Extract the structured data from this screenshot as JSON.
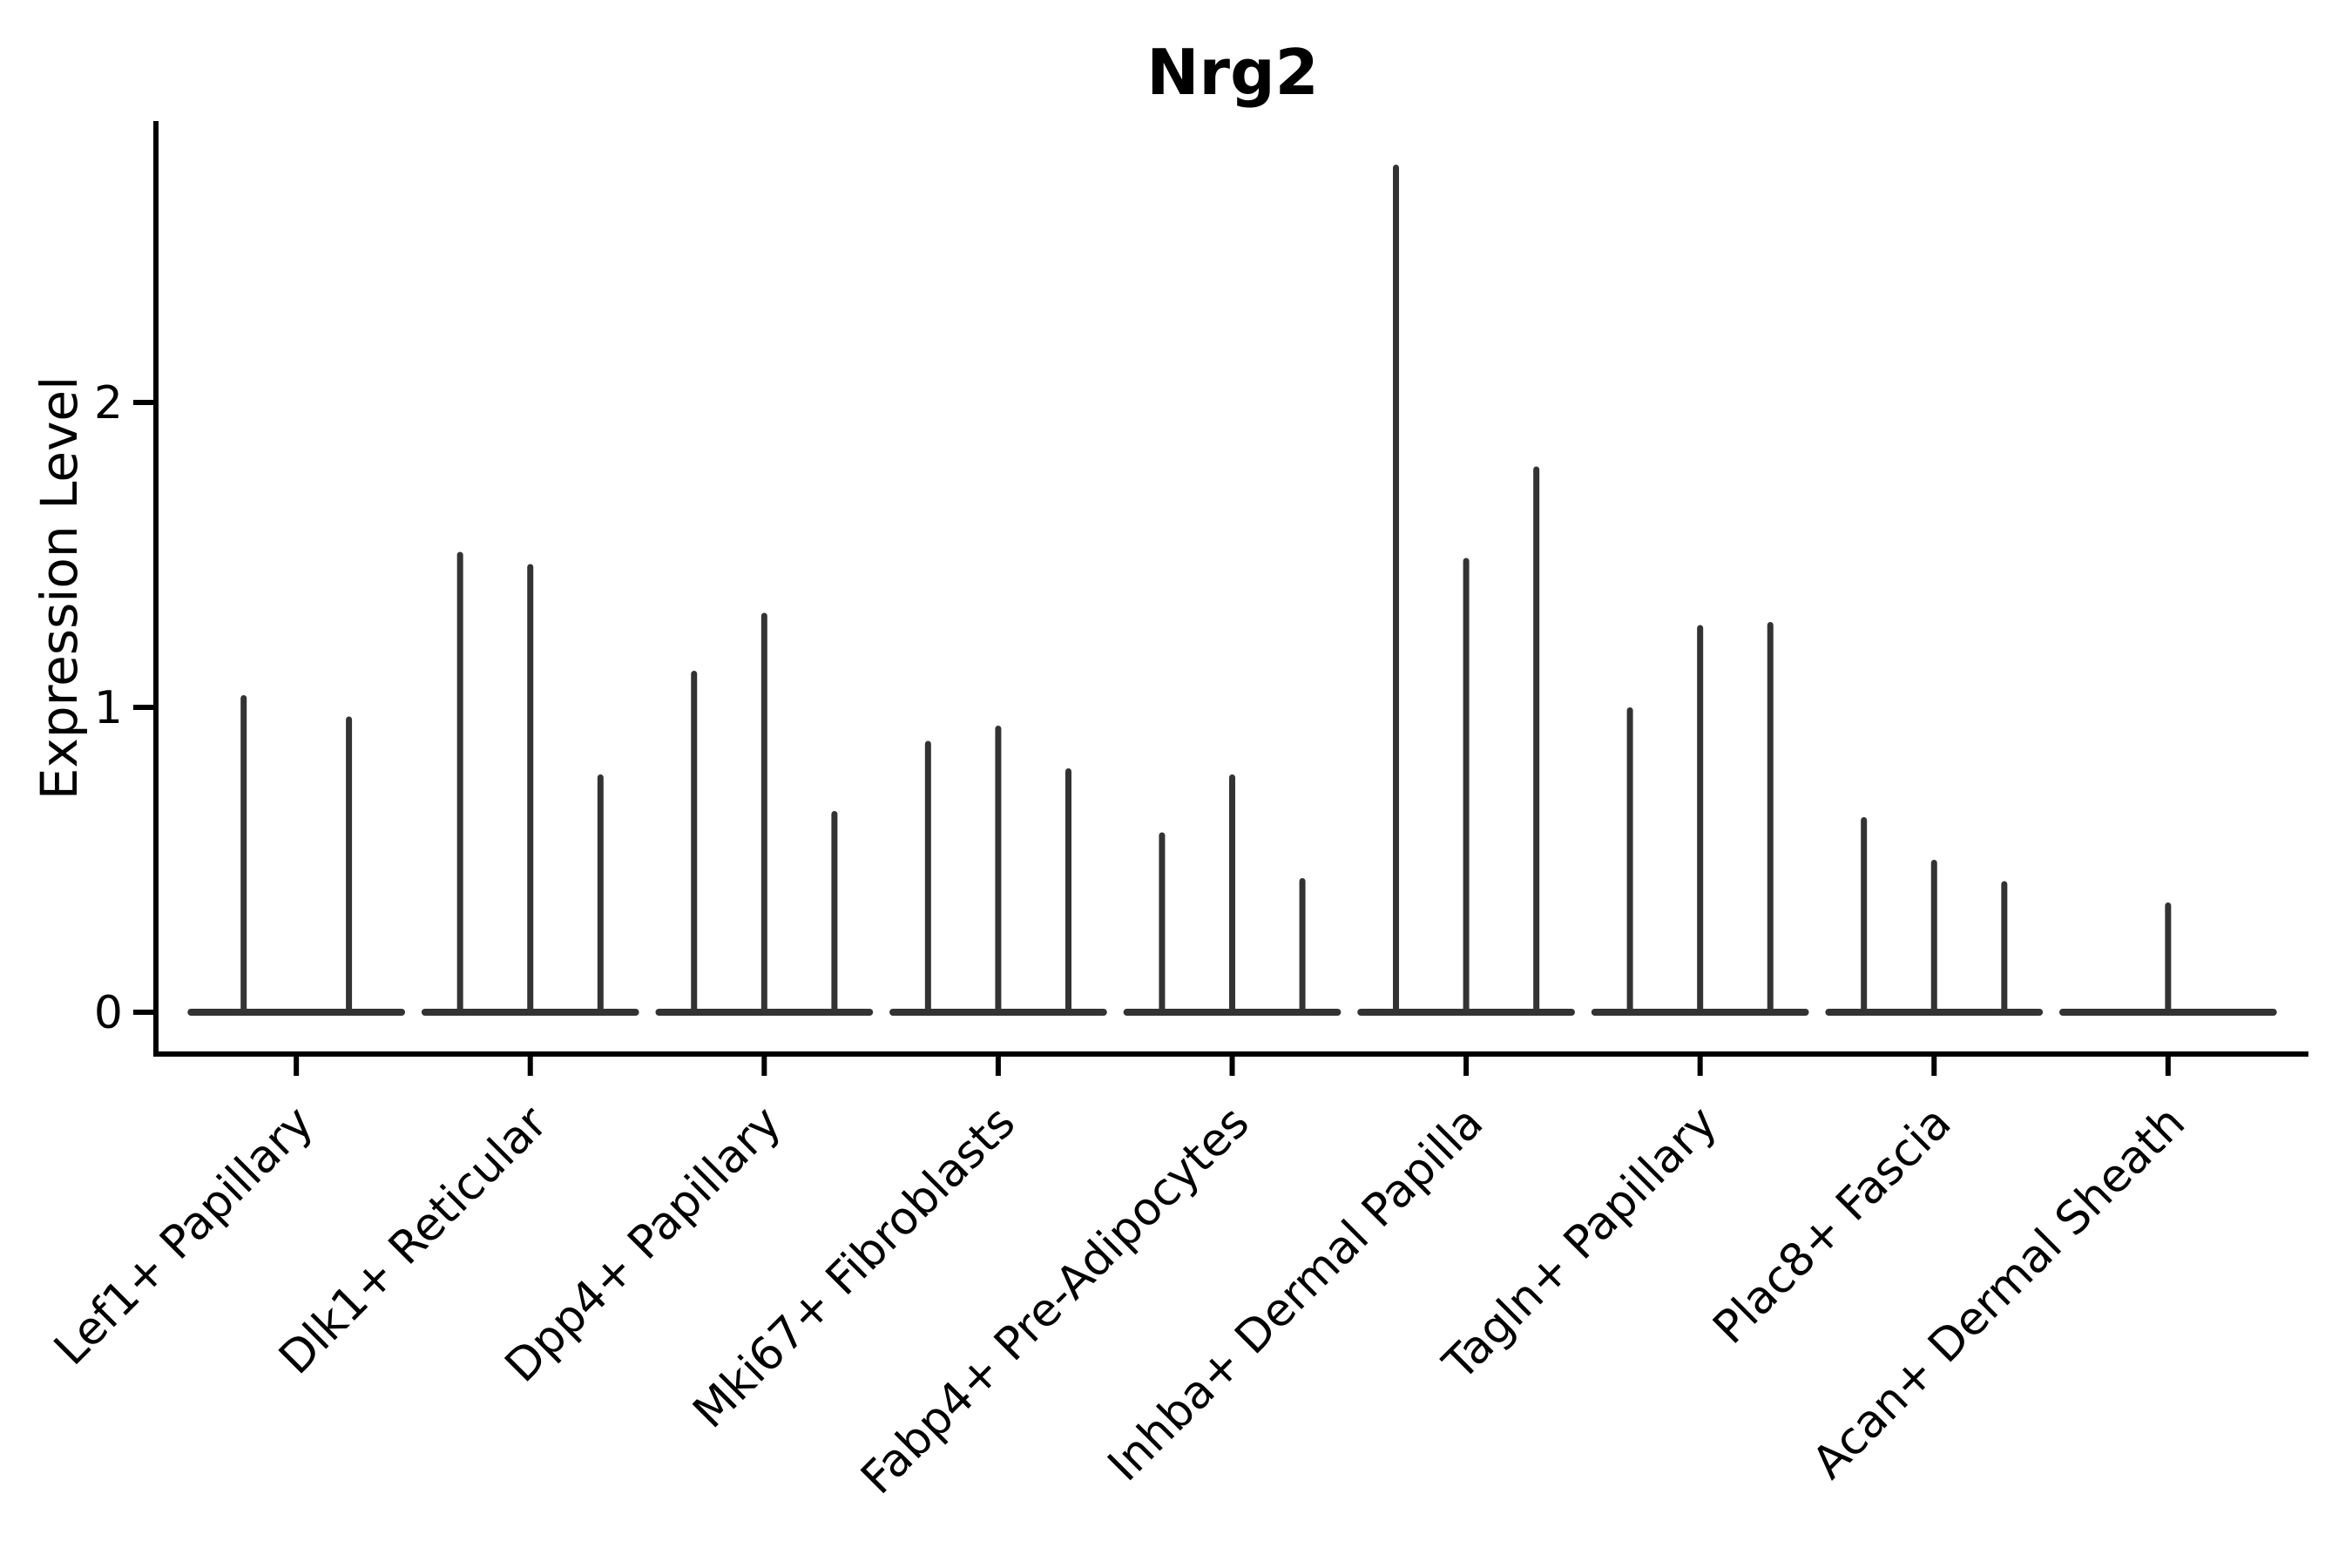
{
  "chart_data": {
    "type": "violin",
    "title": "Nrg2",
    "xlabel": "",
    "ylabel": "Expression Level",
    "yticks": [
      0,
      1,
      2
    ],
    "ylim": [
      -0.15,
      2.92
    ],
    "grid": false,
    "legend": "none",
    "style": "collapsed-violins (zero-width densities rendered as vertical spikes on a flat baseline)",
    "categories": [
      "Lef1+ Papillary",
      "Dlk1+ Reticular",
      "Dpp4+ Papillary",
      "Mki67+ Fibroblasts",
      "Fabp4+ Pre-Adipocytes",
      "Inhba+ Dermal Papilla",
      "Tagln+ Papillary",
      "Plac8+ Fascia",
      "Acan+ Dermal Sheath"
    ],
    "groups": [
      {
        "label": "Lef1+ Papillary",
        "violins": [
          {
            "offset": -0.225,
            "max": 1.03
          },
          {
            "offset": 0.225,
            "max": 0.96
          }
        ]
      },
      {
        "label": "Dlk1+ Reticular",
        "violins": [
          {
            "offset": -0.3,
            "max": 1.5
          },
          {
            "offset": 0,
            "max": 1.46
          },
          {
            "offset": 0.3,
            "max": 0.77
          }
        ]
      },
      {
        "label": "Dpp4+ Papillary",
        "violins": [
          {
            "offset": -0.3,
            "max": 1.11
          },
          {
            "offset": 0,
            "max": 1.3
          },
          {
            "offset": 0.3,
            "max": 0.65
          }
        ]
      },
      {
        "label": "Mki67+ Fibroblasts",
        "violins": [
          {
            "offset": -0.3,
            "max": 0.88
          },
          {
            "offset": 0,
            "max": 0.93
          },
          {
            "offset": 0.3,
            "max": 0.79
          }
        ]
      },
      {
        "label": "Fabp4+ Pre-Adipocytes",
        "violins": [
          {
            "offset": -0.3,
            "max": 0.58
          },
          {
            "offset": 0,
            "max": 0.77
          },
          {
            "offset": 0.3,
            "max": 0.43
          }
        ]
      },
      {
        "label": "Inhba+ Dermal Papilla",
        "violins": [
          {
            "offset": -0.3,
            "max": 2.77
          },
          {
            "offset": 0,
            "max": 1.48
          },
          {
            "offset": 0.3,
            "max": 1.78
          }
        ]
      },
      {
        "label": "Tagln+ Papillary",
        "violins": [
          {
            "offset": -0.3,
            "max": 0.99
          },
          {
            "offset": 0,
            "max": 1.26
          },
          {
            "offset": 0.3,
            "max": 1.27
          }
        ]
      },
      {
        "label": "Plac8+ Fascia",
        "violins": [
          {
            "offset": -0.3,
            "max": 0.63
          },
          {
            "offset": 0,
            "max": 0.49
          },
          {
            "offset": 0.3,
            "max": 0.42
          }
        ]
      },
      {
        "label": "Acan+ Dermal Sheath",
        "violins": [
          {
            "offset": 0,
            "max": 0.35
          }
        ]
      }
    ],
    "baseline_value": 0,
    "baseline_halfwidth_category_units": 0.45,
    "x_tick_label_rotation_deg": 45,
    "colors": {
      "violin": "#333333",
      "axis": "#000000",
      "text": "#000000",
      "background": "#ffffff"
    }
  }
}
